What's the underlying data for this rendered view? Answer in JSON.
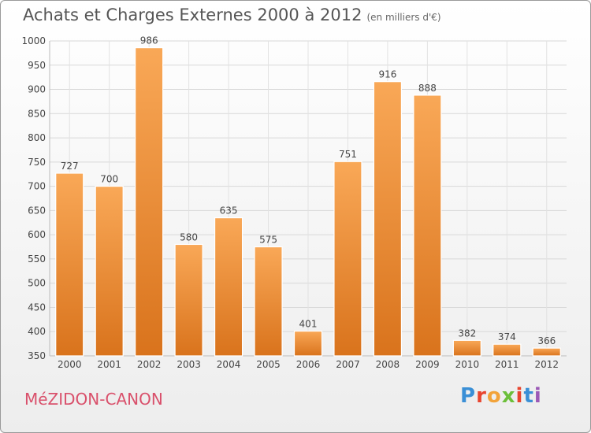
{
  "header": {
    "title": "Achats et Charges Externes 2000 à 2012",
    "subtitle": "(en milliers d'€)"
  },
  "footer": {
    "city": "MéZIDON-CANON",
    "logo_text": "Proxiti",
    "logo_colors": [
      "#3a8fd6",
      "#e8442e",
      "#f2a33a",
      "#6cbf3a",
      "#e8442e",
      "#3a8fd6",
      "#9b59b6"
    ]
  },
  "chart_data": {
    "type": "bar",
    "categories": [
      "2000",
      "2001",
      "2002",
      "2003",
      "2004",
      "2005",
      "2006",
      "2007",
      "2008",
      "2009",
      "2010",
      "2011",
      "2012"
    ],
    "values": [
      727,
      700,
      986,
      580,
      635,
      575,
      401,
      751,
      916,
      888,
      382,
      374,
      366
    ],
    "title": "Achats et Charges Externes 2000 à 2012",
    "subtitle": "(en milliers d'€)",
    "xlabel": "",
    "ylabel": "",
    "ylim": [
      350,
      1000
    ],
    "yticks": [
      350,
      400,
      450,
      500,
      550,
      600,
      650,
      700,
      750,
      800,
      850,
      900,
      950,
      1000
    ],
    "grid": true,
    "bar_color": "#f0922f",
    "data_labels": true
  }
}
